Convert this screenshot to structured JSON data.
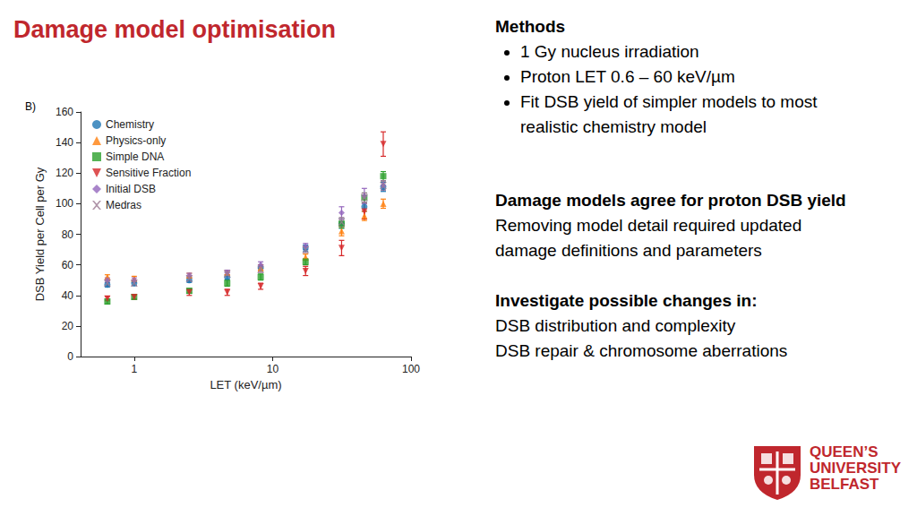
{
  "slide": {
    "title": "Damage model optimisation",
    "methods": {
      "heading": "Methods",
      "bullets": [
        [
          "1 Gy nucleus irradiation"
        ],
        [
          "Proton LET 0.6 – 60 keV/µm"
        ],
        [
          "Fit DSB yield of simpler models to most",
          "realistic chemistry model"
        ]
      ]
    },
    "finding": {
      "heading": "Damage models agree for proton DSB yield",
      "lines": [
        "Removing model detail required updated",
        "damage definitions and parameters"
      ]
    },
    "next": {
      "heading": "Investigate possible changes in:",
      "lines": [
        "DSB distribution and complexity",
        "DSB repair & chromosome aberrations"
      ]
    },
    "logo": [
      "QUEEN’S",
      "UNIVERSITY",
      "BELFAST"
    ]
  },
  "chart_data": {
    "type": "scatter",
    "annotation": "B)",
    "x_label": "LET (keV/µm)",
    "y_label": "DSB Yield per Cell per Gy",
    "x": [
      0.64,
      1,
      2.5,
      4.7,
      8.2,
      17.3,
      31.5,
      46,
      63
    ],
    "series": [
      {
        "name": "Chemistry",
        "color": "#1f77b4",
        "marker": "circle",
        "values": [
          47,
          48,
          50,
          52,
          58,
          71,
          87,
          98,
          111
        ],
        "errors": [
          1.5,
          1.5,
          1.5,
          1.5,
          2,
          2,
          3,
          3,
          3
        ]
      },
      {
        "name": "Physics-only",
        "color": "#ff7f0e",
        "marker": "triangle",
        "values": [
          52,
          51,
          53,
          55,
          58,
          65,
          82,
          92,
          100
        ],
        "errors": [
          1.5,
          1.5,
          1.5,
          1.5,
          2,
          2,
          3,
          3,
          3
        ]
      },
      {
        "name": "Simple DNA",
        "color": "#2ca02c",
        "marker": "square",
        "values": [
          36,
          39,
          43,
          48,
          52,
          62,
          87,
          104,
          118
        ],
        "errors": [
          1.5,
          1.5,
          1.5,
          2,
          2,
          2,
          3,
          3,
          3
        ]
      },
      {
        "name": "Sensitive Fraction",
        "color": "#d62728",
        "marker": "triangle-down",
        "values": [
          38,
          39,
          42,
          42,
          46,
          56,
          71,
          95,
          139
        ],
        "errors": [
          1.5,
          1.5,
          2,
          2,
          2,
          3,
          5,
          5,
          8
        ]
      },
      {
        "name": "Initial DSB",
        "color": "#9467bd",
        "marker": "diamond",
        "values": [
          50,
          50,
          53,
          55,
          60,
          72,
          94,
          105,
          112
        ],
        "errors": [
          1.5,
          1.5,
          1.5,
          1.5,
          2,
          2,
          4,
          5,
          3
        ]
      },
      {
        "name": "Medras",
        "color": "#9c7a94",
        "marker": "x",
        "values": [
          48,
          48,
          51,
          54,
          57,
          70,
          88,
          104,
          112
        ],
        "errors": [
          1.5,
          1.5,
          1.5,
          1.5,
          2,
          2,
          3,
          3,
          3
        ]
      }
    ],
    "xlim": [
      0.41,
      100
    ],
    "ylim": [
      0,
      160
    ],
    "xticks": [
      1,
      10,
      100
    ],
    "yticks": [
      0,
      20,
      40,
      60,
      80,
      100,
      120,
      140,
      160
    ],
    "log": "x",
    "legend": "upper left",
    "grid": false
  }
}
